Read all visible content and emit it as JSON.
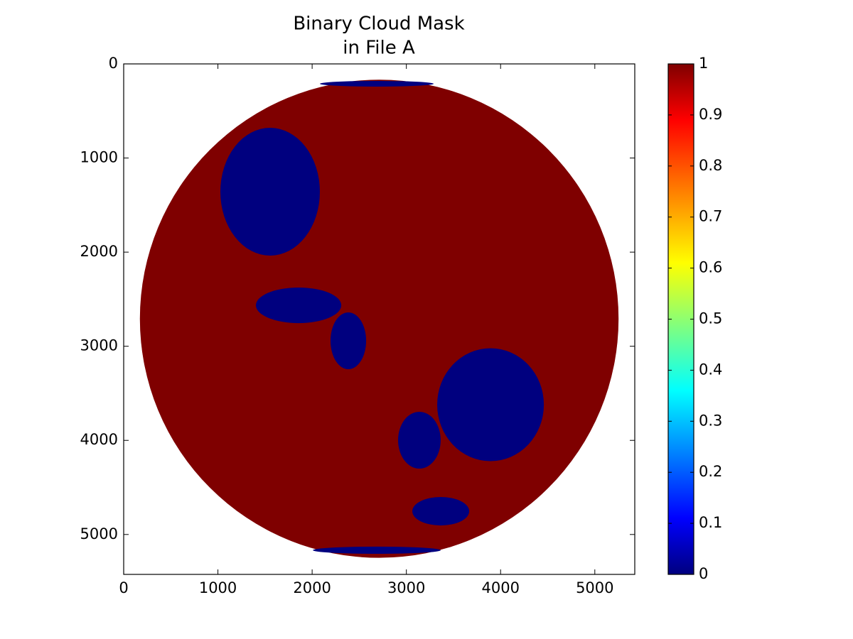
{
  "chart_data": {
    "type": "image",
    "title": [
      "Binary Cloud Mask",
      "in File A"
    ],
    "xlim": [
      0,
      5424
    ],
    "ylim": [
      5424,
      0
    ],
    "xticks": [
      0,
      1000,
      2000,
      3000,
      4000,
      5000
    ],
    "yticks": [
      0,
      1000,
      2000,
      3000,
      4000,
      5000
    ],
    "clim": [
      0,
      1
    ],
    "cticks": [
      0,
      0.1,
      0.2,
      0.3,
      0.4,
      0.5,
      0.6,
      0.7,
      0.8,
      0.9,
      1
    ],
    "colormap": [
      [
        0,
        "#00007f"
      ],
      [
        0.11,
        "#0000ff"
      ],
      [
        0.36,
        "#00ffff"
      ],
      [
        0.61,
        "#ffff00"
      ],
      [
        0.89,
        "#ff0000"
      ],
      [
        1,
        "#7f0000"
      ]
    ],
    "regions": [
      {
        "shape": "ellipse",
        "cx": 2712,
        "cy": 2708,
        "rx": 2540,
        "ry": 2540,
        "value": 1
      },
      {
        "shape": "ellipse",
        "cx": 2686,
        "cy": 5167,
        "rx": 679,
        "ry": 38,
        "value": 0
      },
      {
        "shape": "ellipse",
        "cx": 2686,
        "cy": 211,
        "rx": 604,
        "ry": 30,
        "value": 0
      },
      {
        "shape": "ellipse",
        "cx": 1554,
        "cy": 1358,
        "rx": 528,
        "ry": 679,
        "value": 0
      },
      {
        "shape": "ellipse",
        "cx": 3893,
        "cy": 3621,
        "rx": 566,
        "ry": 600,
        "value": 0
      },
      {
        "shape": "ellipse",
        "cx": 2384,
        "cy": 2942,
        "rx": 189,
        "ry": 302,
        "value": 0
      },
      {
        "shape": "ellipse",
        "cx": 1856,
        "cy": 2565,
        "rx": 453,
        "ry": 189,
        "value": 0
      },
      {
        "shape": "ellipse",
        "cx": 3138,
        "cy": 3998,
        "rx": 226,
        "ry": 302,
        "value": 0
      },
      {
        "shape": "ellipse",
        "cx": 3365,
        "cy": 4753,
        "rx": 302,
        "ry": 151,
        "value": 0
      }
    ]
  }
}
